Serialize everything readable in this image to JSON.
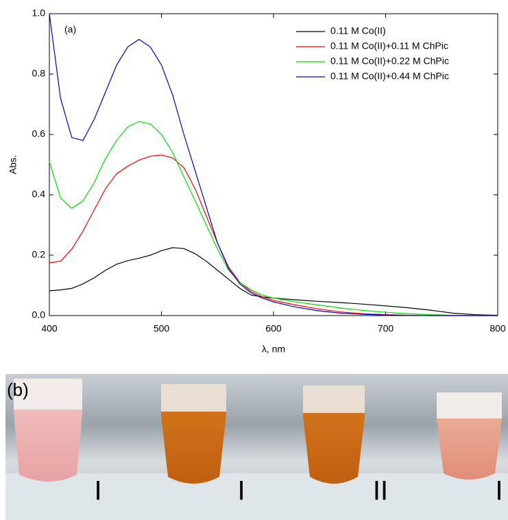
{
  "chart_data": {
    "type": "line",
    "annotation": "(a)",
    "xlabel": "λ, nm",
    "ylabel": "Abs.",
    "x": [
      400,
      410,
      420,
      430,
      440,
      450,
      460,
      470,
      480,
      490,
      500,
      510,
      520,
      530,
      540,
      550,
      560,
      570,
      580,
      590,
      600,
      620,
      640,
      660,
      680,
      700,
      720,
      740,
      760,
      780,
      800
    ],
    "series": [
      {
        "name": "0.11 M Co(II)",
        "color": "#000000",
        "values": [
          0.082,
          0.085,
          0.09,
          0.105,
          0.125,
          0.15,
          0.17,
          0.182,
          0.19,
          0.2,
          0.215,
          0.225,
          0.222,
          0.205,
          0.18,
          0.15,
          0.12,
          0.09,
          0.068,
          0.062,
          0.058,
          0.052,
          0.047,
          0.043,
          0.038,
          0.032,
          0.026,
          0.018,
          0.008,
          0.003,
          0.001
        ]
      },
      {
        "name": "0.11 M Co(II)+0.11 M ChPic",
        "color": "#ff0000",
        "values": [
          0.175,
          0.18,
          0.22,
          0.28,
          0.35,
          0.42,
          0.47,
          0.495,
          0.515,
          0.528,
          0.532,
          0.522,
          0.49,
          0.42,
          0.33,
          0.24,
          0.16,
          0.11,
          0.08,
          0.062,
          0.05,
          0.035,
          0.022,
          0.012,
          0.006,
          0.003,
          0.001,
          0,
          0,
          0,
          0
        ]
      },
      {
        "name": "0.11 M Co(II)+0.22 M ChPic",
        "color": "#00dd00",
        "values": [
          0.51,
          0.39,
          0.355,
          0.38,
          0.44,
          0.52,
          0.58,
          0.625,
          0.643,
          0.635,
          0.6,
          0.54,
          0.46,
          0.38,
          0.3,
          0.22,
          0.15,
          0.11,
          0.085,
          0.068,
          0.058,
          0.045,
          0.035,
          0.025,
          0.017,
          0.011,
          0.006,
          0.003,
          0.001,
          0,
          0
        ]
      },
      {
        "name": "0.11 M Co(II)+0.44 M ChPic",
        "color": "#0000cc",
        "values": [
          1.0,
          0.72,
          0.59,
          0.58,
          0.65,
          0.74,
          0.83,
          0.89,
          0.915,
          0.89,
          0.83,
          0.73,
          0.6,
          0.48,
          0.36,
          0.24,
          0.155,
          0.105,
          0.075,
          0.058,
          0.045,
          0.028,
          0.016,
          0.008,
          0.004,
          0.002,
          0.001,
          0,
          0,
          0,
          0
        ]
      }
    ],
    "xlim": [
      400,
      800
    ],
    "ylim": [
      0,
      1.0
    ],
    "xticks": [
      400,
      500,
      600,
      700,
      800
    ],
    "yticks": [
      {
        "value": 0,
        "label": "0.0"
      },
      0.2,
      0.4,
      0.6,
      0.8,
      {
        "value": 1.0,
        "label": "1.0"
      }
    ],
    "legend": "upper right"
  },
  "photo": {
    "label": "(b)",
    "tube_labels": [
      "I",
      "I",
      "II",
      "I"
    ]
  }
}
